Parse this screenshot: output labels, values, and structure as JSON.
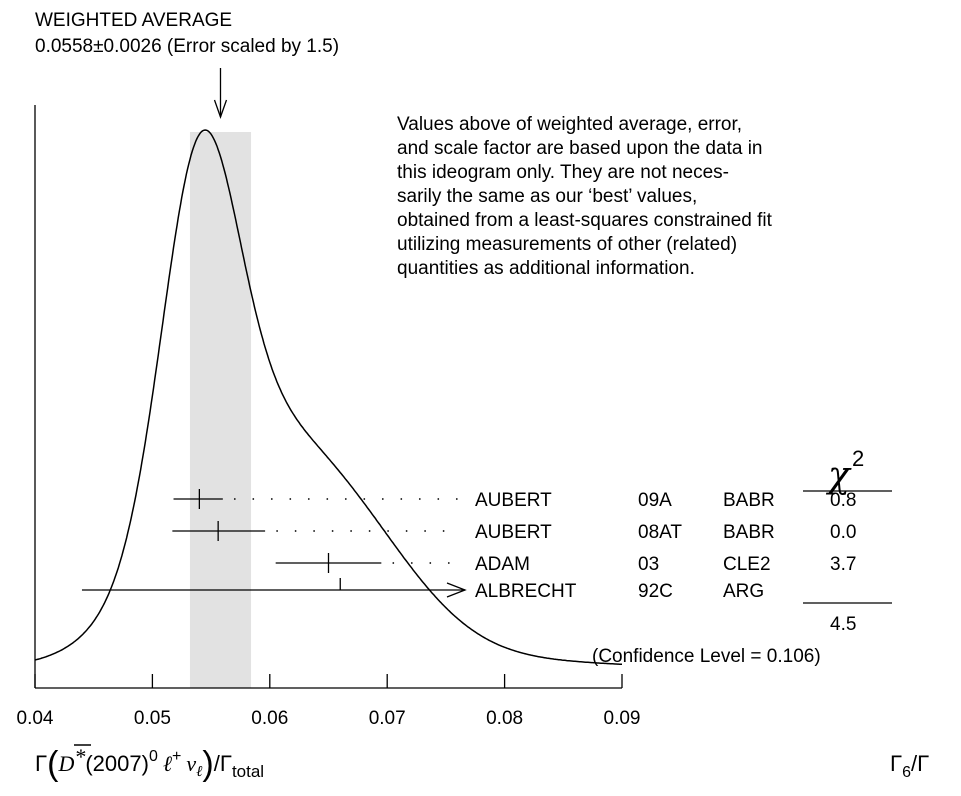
{
  "header": {
    "title": "WEIGHTED AVERAGE",
    "value_line": "0.0558±0.0026 (Error scaled by 1.5)"
  },
  "note": {
    "lines": [
      "Values above of weighted average, error,",
      "and scale factor are based upon the data in",
      "this ideogram only.  They are not neces-",
      "sarily the same as our ‘best’ values,",
      "obtained from a least-squares constrained fit",
      "utilizing measurements of other (related)",
      "quantities as additional information."
    ]
  },
  "chart_data": {
    "type": "scatter",
    "title": "WEIGHTED AVERAGE",
    "weighted_average": 0.0558,
    "weighted_error": 0.0026,
    "error_scale_factor": 1.5,
    "xlim": [
      0.04,
      0.09
    ],
    "x_ticks": [
      "0.04",
      "0.05",
      "0.06",
      "0.07",
      "0.08",
      "0.09"
    ],
    "x_tick_values": [
      0.04,
      0.05,
      0.06,
      0.07,
      0.08,
      0.09
    ],
    "measurements": [
      {
        "author": "AUBERT",
        "ref": "09A",
        "experiment": "BABR",
        "chi2": "0.8",
        "value": 0.054,
        "err_low": 0.0022,
        "err_high": 0.002
      },
      {
        "author": "AUBERT",
        "ref": "08AT",
        "experiment": "BABR",
        "chi2": "0.0",
        "value": 0.0556,
        "err_low": 0.0039,
        "err_high": 0.004
      },
      {
        "author": "ADAM",
        "ref": "03",
        "experiment": "CLE2",
        "chi2": "3.7",
        "value": 0.065,
        "err_low": 0.0045,
        "err_high": 0.0045
      },
      {
        "author": "ALBRECHT",
        "ref": "92C",
        "experiment": "ARG",
        "chi2": "",
        "value": 0.066,
        "err_low": 0.022,
        "err_high": 0.022
      }
    ],
    "chi2_header": "χ",
    "chi2_superscript": "2",
    "chi2_total": "4.5",
    "confidence_level": "(Confidence Level = 0.106)",
    "xlabel": "Γ(D*(2007)0 ℓ+ νℓ)/Γtotal",
    "xlabel_parts": {
      "gamma": "Γ",
      "particle": "D",
      "star": "*",
      "mass": "(2007)",
      "zero": "0",
      "lepton": "ℓ",
      "plus": "+",
      "nu": "ν",
      "nu_sub": "ℓ",
      "slash": "/Γ",
      "total": "total"
    },
    "corner_label": {
      "gamma": "Γ",
      "sub": "6",
      "slash": "/Γ"
    }
  }
}
